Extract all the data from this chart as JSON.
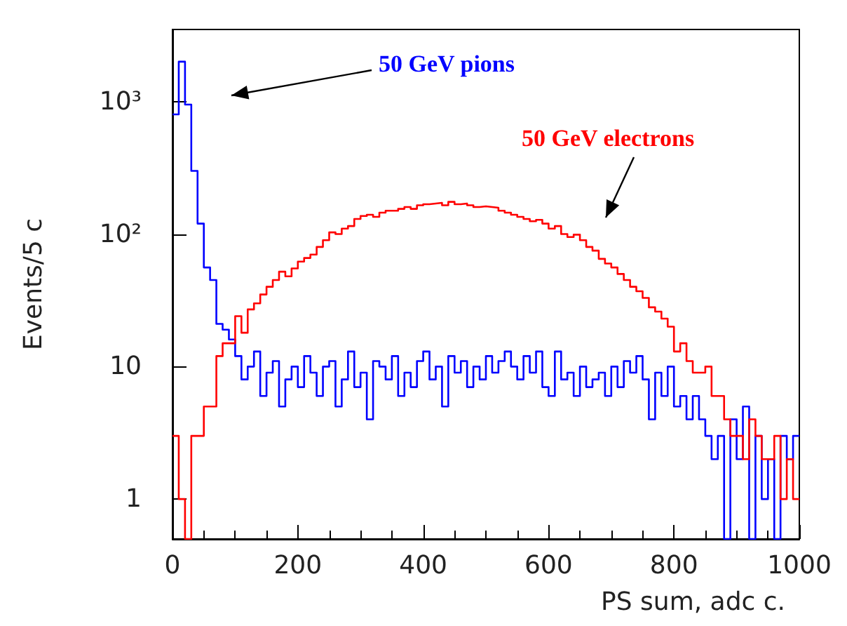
{
  "chart_data": {
    "type": "histogram",
    "xlabel": "PS sum, adc c.",
    "ylabel": "Events/5 c",
    "bins": [
      0,
      10,
      20,
      30,
      40,
      50,
      60,
      70,
      80,
      90,
      100,
      110,
      120,
      130,
      140,
      150,
      160,
      170,
      180,
      190,
      200,
      210,
      220,
      230,
      240,
      250,
      260,
      270,
      280,
      290,
      300,
      310,
      320,
      330,
      340,
      350,
      360,
      370,
      380,
      390,
      400,
      410,
      420,
      430,
      440,
      450,
      460,
      470,
      480,
      490,
      500,
      510,
      520,
      530,
      540,
      550,
      560,
      570,
      580,
      590,
      600,
      610,
      620,
      630,
      640,
      650,
      660,
      670,
      680,
      690,
      700,
      710,
      720,
      730,
      740,
      750,
      760,
      770,
      780,
      790,
      800,
      810,
      820,
      830,
      840,
      850,
      860,
      870,
      880,
      890,
      900,
      910,
      920,
      930,
      940,
      950,
      960,
      970,
      980,
      990,
      1000
    ],
    "series": [
      {
        "color": "#0000ff",
        "values": [
          800,
          2000,
          950,
          300,
          120,
          56,
          45,
          21,
          19,
          16,
          12,
          8,
          10,
          13,
          6,
          9,
          11,
          5,
          8,
          10,
          7,
          12,
          9,
          6,
          10,
          11,
          5,
          8,
          13,
          7,
          9,
          4,
          11,
          10,
          8,
          12,
          6,
          9,
          7,
          11,
          13,
          8,
          10,
          5,
          12,
          9,
          11,
          7,
          10,
          8,
          12,
          9,
          11,
          13,
          10,
          8,
          12,
          9,
          13,
          7,
          6,
          13,
          8,
          9,
          6,
          10,
          7,
          8,
          9,
          6,
          10,
          7,
          11,
          9,
          12,
          8,
          4,
          9,
          6,
          10,
          5,
          6,
          4,
          6,
          4,
          3,
          2,
          3,
          null,
          4,
          2,
          5,
          null,
          3,
          1,
          2,
          null,
          3,
          2,
          3
        ]
      },
      {
        "color": "#ff0000",
        "values": [
          3,
          1,
          null,
          3,
          3,
          5,
          5,
          12,
          15,
          15,
          24,
          18,
          27,
          30,
          35,
          40,
          45,
          52,
          48,
          55,
          62,
          66,
          70,
          80,
          90,
          103,
          100,
          110,
          115,
          130,
          137,
          140,
          135,
          145,
          150,
          150,
          155,
          160,
          155,
          165,
          168,
          170,
          172,
          165,
          175,
          168,
          170,
          165,
          160,
          162,
          160,
          158,
          150,
          145,
          140,
          135,
          130,
          125,
          128,
          120,
          110,
          115,
          100,
          95,
          99,
          90,
          80,
          75,
          65,
          60,
          56,
          50,
          45,
          40,
          37,
          33,
          28,
          26,
          23,
          20,
          13,
          15,
          11,
          9,
          9,
          10,
          6,
          6,
          4,
          3,
          3,
          2,
          4,
          3,
          2,
          2,
          3,
          1,
          2,
          1
        ]
      }
    ],
    "annotations": [
      "50 GeV pions",
      "50 GeV electrons"
    ],
    "log": "y",
    "xlim": [
      0,
      1000
    ],
    "xticks": [
      0,
      200,
      400,
      600,
      800,
      1000
    ],
    "ylim": [
      0.5,
      3500
    ],
    "yticks": [
      1,
      10,
      {
        "value": 100,
        "label": "10²"
      },
      {
        "value": 1000,
        "label": "10³"
      }
    ],
    "grid": false
  }
}
